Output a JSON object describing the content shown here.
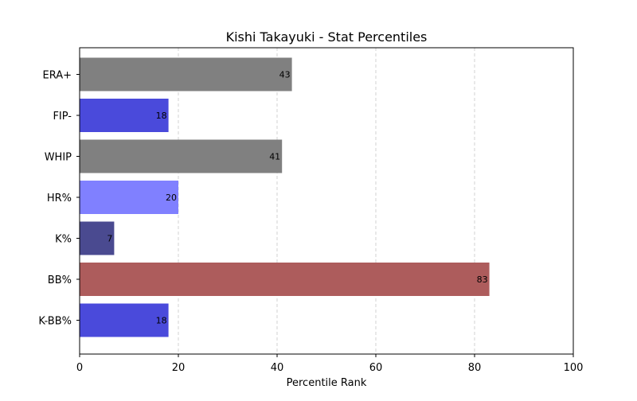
{
  "chart_data": {
    "type": "bar",
    "orientation": "horizontal",
    "title": "Kishi Takayuki - Stat Percentiles",
    "xlabel": "Percentile Rank",
    "ylabel": "",
    "xlim": [
      0,
      100
    ],
    "xticks": [
      "0",
      "20",
      "40",
      "60",
      "80",
      "100"
    ],
    "grid": "x-dashed",
    "categories": [
      "ERA+",
      "FIP-",
      "WHIP",
      "HR%",
      "K%",
      "BB%",
      "K-BB%"
    ],
    "values": [
      43,
      18,
      41,
      20,
      7,
      83,
      18
    ],
    "value_labels": [
      "43",
      "18",
      "41",
      "20",
      "7",
      "83",
      "18"
    ],
    "colors": [
      "#808080",
      "#4a4adb",
      "#808080",
      "#8080ff",
      "#4a4a90",
      "#ad5c5c",
      "#4a4adb"
    ]
  }
}
